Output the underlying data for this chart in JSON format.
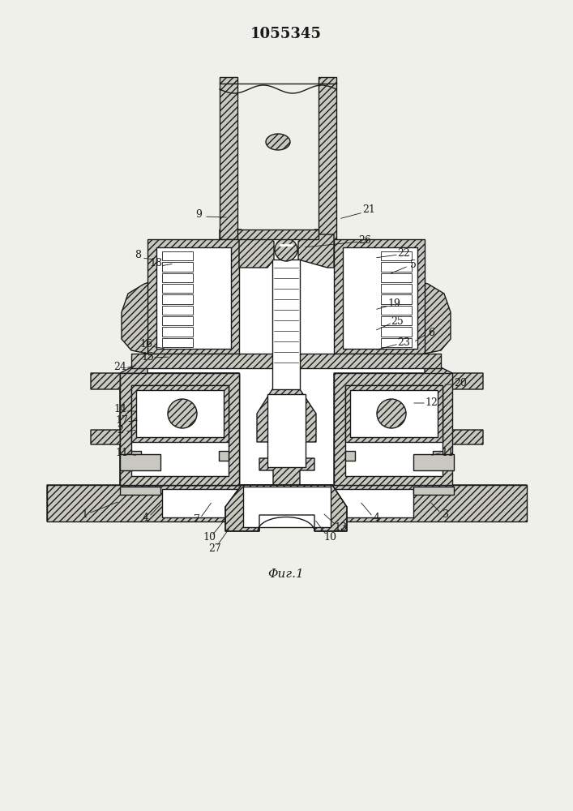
{
  "title": "1055345",
  "fig_label": "Φиг.1",
  "bg_color": "#f0f0eb",
  "line_color": "#1a1a1a",
  "fill_color": "#c8c8c0"
}
